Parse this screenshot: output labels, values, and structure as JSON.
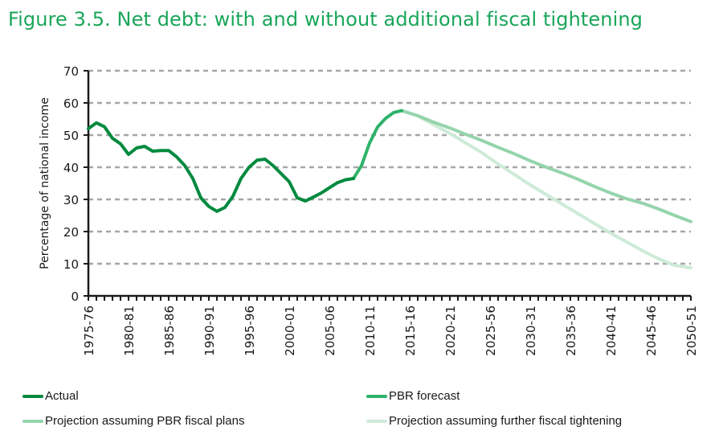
{
  "title": "Figure 3.5. Net debt: with and without additional fiscal tightening",
  "chart_data": {
    "type": "line",
    "title": "Figure 3.5. Net debt: with and without additional fiscal tightening",
    "xlabel": "",
    "ylabel": "Percentage of national income",
    "ylim": [
      0,
      70
    ],
    "yticks": [
      0,
      10,
      20,
      30,
      40,
      50,
      60,
      70
    ],
    "xlim": [
      1975,
      2050
    ],
    "xtick_labels": [
      {
        "year": 1975,
        "label": "1975-76"
      },
      {
        "year": 1980,
        "label": "1980-81"
      },
      {
        "year": 1985,
        "label": "1985-86"
      },
      {
        "year": 1990,
        "label": "1990-91"
      },
      {
        "year": 1995,
        "label": "1995-96"
      },
      {
        "year": 2000,
        "label": "2000-01"
      },
      {
        "year": 2005,
        "label": "2005-06"
      },
      {
        "year": 2010,
        "label": "2010-11"
      },
      {
        "year": 2015,
        "label": "2015-16"
      },
      {
        "year": 2020,
        "label": "2020-21"
      },
      {
        "year": 2025,
        "label": "2025-56"
      },
      {
        "year": 2030,
        "label": "2030-31"
      },
      {
        "year": 2035,
        "label": "2035-36"
      },
      {
        "year": 2040,
        "label": "2040-41"
      },
      {
        "year": 2045,
        "label": "2045-46"
      },
      {
        "year": 2050,
        "label": "2050-51"
      }
    ],
    "grid": "horizontal-dashed",
    "legend_position": "bottom",
    "series": [
      {
        "name": "Actual",
        "color": "#008a3e",
        "x": [
          1975,
          1976,
          1977,
          1978,
          1979,
          1980,
          1981,
          1982,
          1983,
          1984,
          1985,
          1986,
          1987,
          1988,
          1989,
          1990,
          1991,
          1992,
          1993,
          1994,
          1995,
          1996,
          1997,
          1998,
          1999,
          2000,
          2001,
          2002,
          2003,
          2004,
          2005,
          2006,
          2007,
          2008
        ],
        "values": [
          52,
          53.8,
          52.6,
          49,
          47.3,
          44,
          46,
          46.5,
          45,
          45.2,
          45.2,
          43.2,
          40.5,
          36.5,
          30.5,
          27.8,
          26.3,
          27.5,
          31,
          36.5,
          40,
          42.2,
          42.5,
          40.5,
          38,
          35.5,
          30.5,
          29.5,
          30.7,
          32,
          33.6,
          35.2,
          36.1,
          36.5
        ]
      },
      {
        "name": "PBR forecast",
        "color": "#2db36a",
        "x": [
          2008,
          2009,
          2010,
          2011,
          2012,
          2013,
          2014
        ],
        "values": [
          36.5,
          40.5,
          47.5,
          52.5,
          55.2,
          57,
          57.6
        ]
      },
      {
        "name": "Projection assuming PBR fiscal plans",
        "color": "#95d4ac",
        "x": [
          2014,
          2016,
          2018,
          2020,
          2022,
          2024,
          2026,
          2028,
          2030,
          2032,
          2034,
          2036,
          2038,
          2040,
          2042,
          2044,
          2046,
          2048,
          2050
        ],
        "values": [
          57.6,
          56,
          54,
          52.2,
          50.2,
          48.3,
          46.2,
          44.2,
          42,
          40,
          38.2,
          36.2,
          34,
          32,
          30.2,
          28.8,
          27,
          25,
          23.1
        ]
      },
      {
        "name": "Projection assuming further fiscal tightening",
        "color": "#cdebd7",
        "x": [
          2014,
          2016,
          2018,
          2020,
          2022,
          2024,
          2026,
          2028,
          2030,
          2032,
          2034,
          2036,
          2038,
          2040,
          2042,
          2044,
          2046,
          2048,
          2050
        ],
        "values": [
          57.6,
          56,
          53.2,
          50.5,
          47.5,
          44.5,
          41,
          37.8,
          34.5,
          31.5,
          28.5,
          25.5,
          22.5,
          19.5,
          16.8,
          14,
          11.5,
          9.5,
          8.7
        ]
      }
    ]
  }
}
